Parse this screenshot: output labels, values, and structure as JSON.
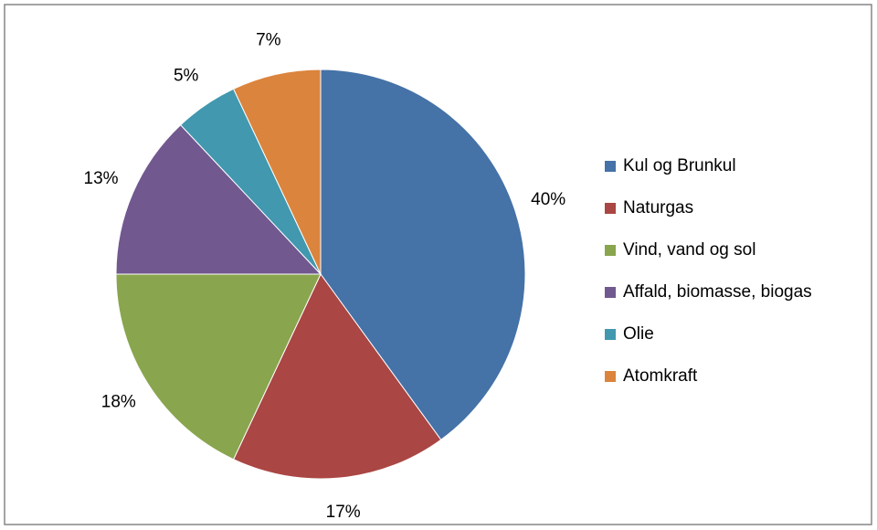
{
  "chart_data": {
    "type": "pie",
    "categories": [
      "Kul og Brunkul",
      "Naturgas",
      "Vind, vand og sol",
      "Affald, biomasse, biogas",
      "Olie",
      "Atomkraft"
    ],
    "values": [
      40,
      17,
      18,
      13,
      5,
      7
    ],
    "value_labels": [
      "40%",
      "17%",
      "18%",
      "13%",
      "5%",
      "7%"
    ],
    "colors": [
      "#4572a7",
      "#aa4643",
      "#89a54e",
      "#71588f",
      "#4198af",
      "#db843d"
    ],
    "legend": "right"
  }
}
